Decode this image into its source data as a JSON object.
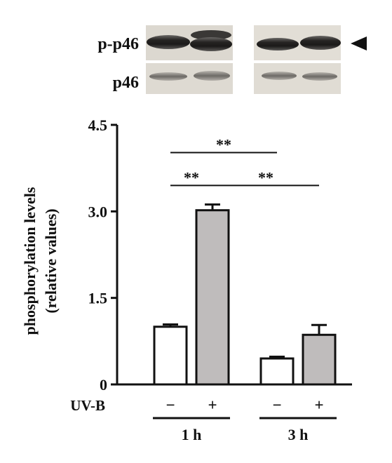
{
  "blot": {
    "rows": [
      {
        "label": "p-p46"
      },
      {
        "label": "p46"
      }
    ]
  },
  "chart_data": {
    "type": "bar",
    "ylabel_line1": "phosphorylation levels",
    "ylabel_line2": "(relative values)",
    "ylim": [
      0,
      4.5
    ],
    "yticks": [
      "0",
      "1.5",
      "3.0",
      "4.5"
    ],
    "ytick_values": [
      0,
      1.5,
      3.0,
      4.5
    ],
    "treatment_label": "UV-B",
    "groups": [
      {
        "label": "1 h",
        "bars": [
          {
            "sign": "−",
            "value": 1.0,
            "error": 0.04,
            "color": "#ffffff"
          },
          {
            "sign": "+",
            "value": 3.02,
            "error": 0.1,
            "color": "#bfbcbc"
          }
        ]
      },
      {
        "label": "3 h",
        "bars": [
          {
            "sign": "−",
            "value": 0.45,
            "error": 0.03,
            "color": "#ffffff"
          },
          {
            "sign": "+",
            "value": 0.86,
            "error": 0.17,
            "color": "#bfbcbc"
          }
        ]
      }
    ],
    "significance": [
      {
        "from": [
          0,
          0
        ],
        "to": [
          1,
          0
        ],
        "text": "**",
        "level": 4.02
      },
      {
        "from": [
          0,
          0
        ],
        "to": [
          0,
          1
        ],
        "text": "**",
        "level": 3.45
      },
      {
        "from": [
          0,
          1
        ],
        "to": [
          1,
          1
        ],
        "text": "**",
        "level": 3.45
      }
    ],
    "grid": false
  }
}
